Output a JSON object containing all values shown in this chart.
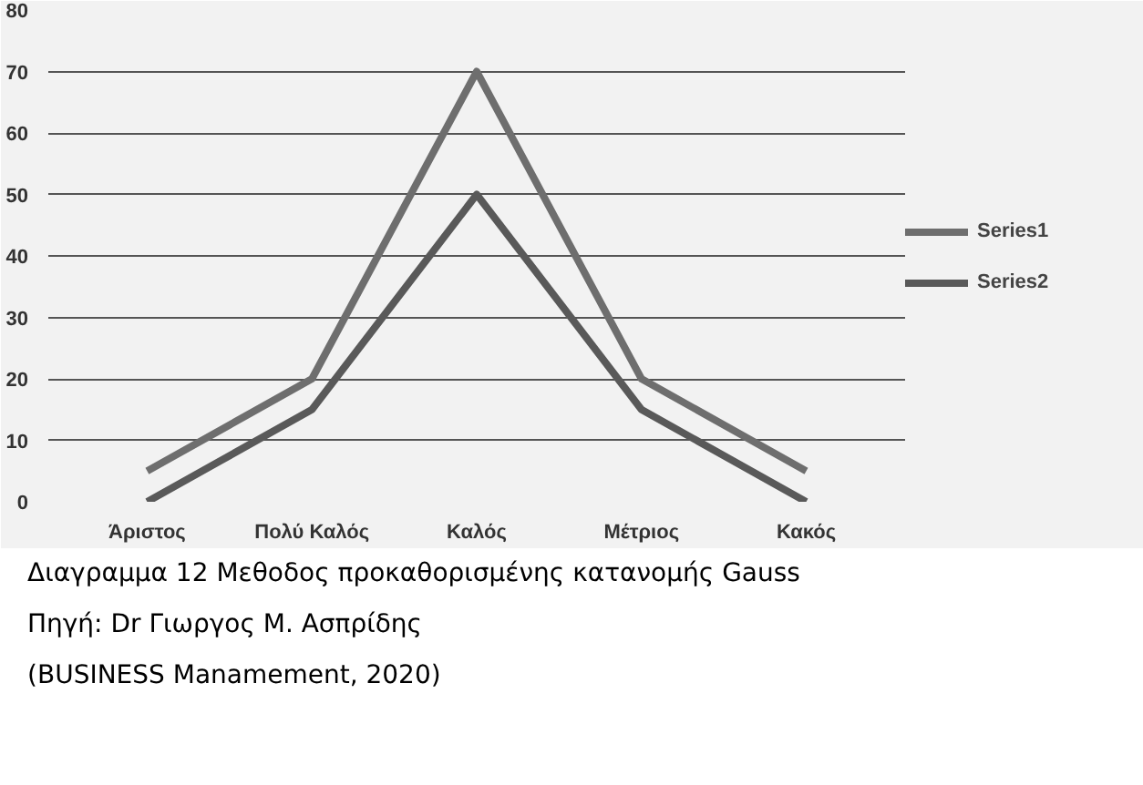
{
  "chart_data": {
    "type": "line",
    "categories": [
      "Άριστος",
      "Πολύ Καλός",
      "Καλός",
      "Μέτριος",
      "Κακός"
    ],
    "series": [
      {
        "name": "Series1",
        "color": "#6e6e6e",
        "values": [
          5,
          20,
          70,
          20,
          5
        ]
      },
      {
        "name": "Series2",
        "color": "#595959",
        "values": [
          0,
          15,
          50,
          15,
          0
        ]
      }
    ],
    "ylim": [
      0,
      80
    ],
    "yticks": [
      0,
      10,
      20,
      30,
      40,
      50,
      60,
      70,
      80
    ],
    "grid": "y",
    "legend": "right",
    "marker": "none",
    "line_style": "solid",
    "annotations": [
      "Διαγραμμα 12 Μεθοδος προκαθορισμένης κατανομής Gauss",
      "Πηγή: Dr Γιωργος Μ. Ασπρίδης",
      "(BUSINESS Manamement, 2020)"
    ]
  }
}
